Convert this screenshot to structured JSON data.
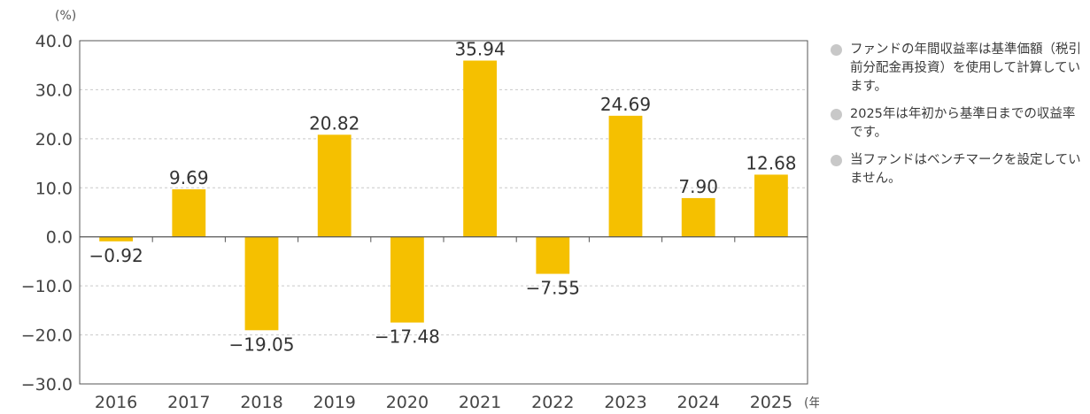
{
  "chart_data": {
    "type": "bar",
    "categories": [
      "2016",
      "2017",
      "2018",
      "2019",
      "2020",
      "2021",
      "2022",
      "2023",
      "2024",
      "2025"
    ],
    "values": [
      -0.92,
      9.69,
      -19.05,
      20.82,
      -17.48,
      35.94,
      -7.55,
      24.69,
      7.9,
      12.68
    ],
    "value_labels": [
      "−0.92",
      "9.69",
      "−19.05",
      "20.82",
      "−17.48",
      "35.94",
      "−7.55",
      "24.69",
      "7.90",
      "12.68"
    ],
    "ylim": [
      -30,
      40
    ],
    "yticks": [
      40,
      30,
      20,
      10,
      0,
      -10,
      -20,
      -30
    ],
    "ytick_labels": [
      "40.0",
      "30.0",
      "20.0",
      "10.0",
      "0.0",
      "−10.0",
      "−20.0",
      "−30.0"
    ],
    "y_unit": "(%)",
    "x_unit": "(年)",
    "grid": true,
    "bar_color": "#f5c000"
  },
  "notes": [
    "ファンドの年間収益率は基準価額（税引前分配金再投資）を使用して計算しています。",
    "2025年は年初から基準日までの収益率です。",
    "当ファンドはベンチマークを設定していません。"
  ],
  "colors": {
    "bar": "#f5c000",
    "grid": "#c9c9c9",
    "axis": "#555555",
    "bullet": "#c8c8c8"
  }
}
